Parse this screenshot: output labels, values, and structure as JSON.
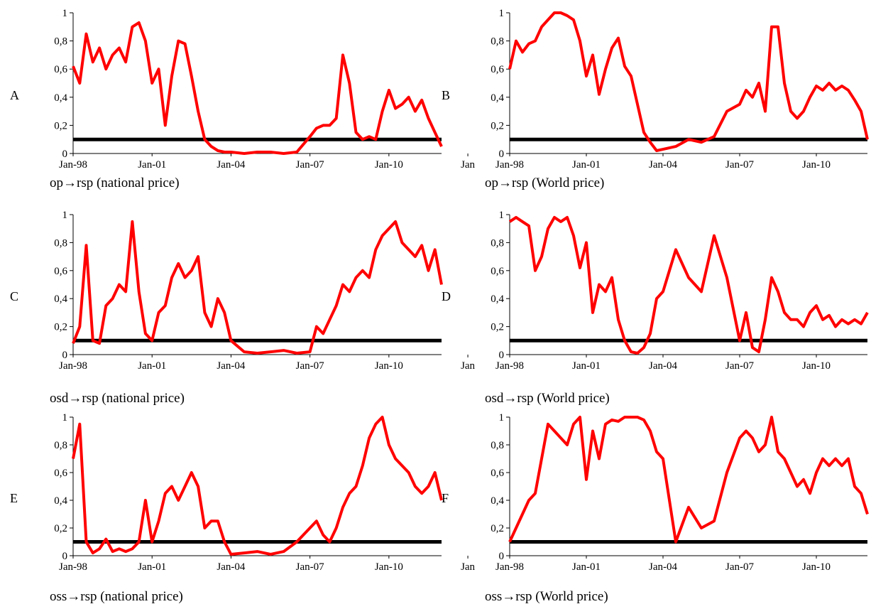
{
  "colors": {
    "series": "#ff0000",
    "threshold": "#000000"
  },
  "chart_data": [
    {
      "type": "line",
      "panel": "A",
      "caption": "op→rsp (national price)",
      "ylim": [
        0,
        1
      ],
      "yticks": [
        "0",
        "0,2",
        "0,4",
        "0,6",
        "0,8",
        "1"
      ],
      "xticks": [
        "Jan-98",
        "Jan-01",
        "Jan-04",
        "Jan-07",
        "Jan-10",
        "Jan"
      ],
      "threshold": 0.1,
      "x": [
        1998.0,
        1998.25,
        1998.5,
        1998.75,
        1999.0,
        1999.25,
        1999.5,
        1999.75,
        2000.0,
        2000.25,
        2000.5,
        2000.75,
        2001.0,
        2001.25,
        2001.5,
        2001.75,
        2002.0,
        2002.25,
        2002.5,
        2002.75,
        2003.0,
        2003.25,
        2003.5,
        2003.75,
        2004.0,
        2004.5,
        2005.0,
        2005.5,
        2006.0,
        2006.5,
        2007.0,
        2007.25,
        2007.5,
        2007.75,
        2008.0,
        2008.25,
        2008.5,
        2008.75,
        2009.0,
        2009.25,
        2009.5,
        2009.75,
        2010.0,
        2010.25,
        2010.5,
        2010.75,
        2011.0,
        2011.25,
        2011.5,
        2011.75,
        2012.0
      ],
      "values": [
        0.62,
        0.5,
        0.85,
        0.65,
        0.75,
        0.6,
        0.7,
        0.75,
        0.65,
        0.9,
        0.93,
        0.8,
        0.5,
        0.6,
        0.2,
        0.55,
        0.8,
        0.78,
        0.55,
        0.3,
        0.1,
        0.05,
        0.02,
        0.01,
        0.01,
        0.0,
        0.01,
        0.01,
        0.0,
        0.01,
        0.12,
        0.18,
        0.2,
        0.2,
        0.25,
        0.7,
        0.5,
        0.15,
        0.1,
        0.12,
        0.1,
        0.3,
        0.45,
        0.32,
        0.35,
        0.4,
        0.3,
        0.38,
        0.25,
        0.15,
        0.05
      ]
    },
    {
      "type": "line",
      "panel": "B",
      "caption": "op→rsp (World price)",
      "ylim": [
        0,
        1
      ],
      "yticks": [
        "0",
        "0,2",
        "0,4",
        "0,6",
        "0,8",
        "1"
      ],
      "xticks": [
        "Jan-98",
        "Jan-01",
        "Jan-04",
        "Jan-07",
        "Jan-10",
        "Jan"
      ],
      "threshold": 0.1,
      "x": [
        1998.0,
        1998.25,
        1998.5,
        1998.75,
        1999.0,
        1999.25,
        1999.5,
        1999.75,
        2000.0,
        2000.25,
        2000.5,
        2000.75,
        2001.0,
        2001.25,
        2001.5,
        2001.75,
        2002.0,
        2002.25,
        2002.5,
        2002.75,
        2003.0,
        2003.25,
        2003.5,
        2003.75,
        2004.0,
        2004.5,
        2005.0,
        2005.5,
        2006.0,
        2006.5,
        2007.0,
        2007.25,
        2007.5,
        2007.75,
        2008.0,
        2008.25,
        2008.5,
        2008.75,
        2009.0,
        2009.25,
        2009.5,
        2009.75,
        2010.0,
        2010.25,
        2010.5,
        2010.75,
        2011.0,
        2011.25,
        2011.5,
        2011.75,
        2012.0
      ],
      "values": [
        0.6,
        0.8,
        0.72,
        0.78,
        0.8,
        0.9,
        0.95,
        1.0,
        1.0,
        0.98,
        0.95,
        0.8,
        0.55,
        0.7,
        0.42,
        0.6,
        0.75,
        0.82,
        0.62,
        0.55,
        0.35,
        0.15,
        0.08,
        0.02,
        0.03,
        0.05,
        0.1,
        0.08,
        0.12,
        0.3,
        0.35,
        0.45,
        0.4,
        0.5,
        0.3,
        0.9,
        0.9,
        0.5,
        0.3,
        0.25,
        0.3,
        0.4,
        0.48,
        0.45,
        0.5,
        0.45,
        0.48,
        0.45,
        0.38,
        0.3,
        0.1
      ]
    },
    {
      "type": "line",
      "panel": "C",
      "caption": "osd→rsp (national price)",
      "ylim": [
        0,
        1
      ],
      "yticks": [
        "0",
        "0,2",
        "0,4",
        "0,6",
        "0,8",
        "1"
      ],
      "xticks": [
        "Jan-98",
        "Jan-01",
        "Jan-04",
        "Jan-07",
        "Jan-10",
        "Jan"
      ],
      "threshold": 0.1,
      "x": [
        1998.0,
        1998.25,
        1998.5,
        1998.75,
        1999.0,
        1999.25,
        1999.5,
        1999.75,
        2000.0,
        2000.25,
        2000.5,
        2000.75,
        2001.0,
        2001.25,
        2001.5,
        2001.75,
        2002.0,
        2002.25,
        2002.5,
        2002.75,
        2003.0,
        2003.25,
        2003.5,
        2003.75,
        2004.0,
        2004.5,
        2005.0,
        2005.5,
        2006.0,
        2006.5,
        2007.0,
        2007.25,
        2007.5,
        2007.75,
        2008.0,
        2008.25,
        2008.5,
        2008.75,
        2009.0,
        2009.25,
        2009.5,
        2009.75,
        2010.0,
        2010.25,
        2010.5,
        2010.75,
        2011.0,
        2011.25,
        2011.5,
        2011.75,
        2012.0
      ],
      "values": [
        0.08,
        0.2,
        0.78,
        0.1,
        0.08,
        0.35,
        0.4,
        0.5,
        0.45,
        0.95,
        0.45,
        0.15,
        0.1,
        0.3,
        0.35,
        0.55,
        0.65,
        0.55,
        0.6,
        0.7,
        0.3,
        0.2,
        0.4,
        0.3,
        0.1,
        0.02,
        0.01,
        0.02,
        0.03,
        0.01,
        0.02,
        0.2,
        0.15,
        0.25,
        0.35,
        0.5,
        0.45,
        0.55,
        0.6,
        0.55,
        0.75,
        0.85,
        0.9,
        0.95,
        0.8,
        0.75,
        0.7,
        0.78,
        0.6,
        0.75,
        0.5
      ]
    },
    {
      "type": "line",
      "panel": "D",
      "caption": "osd→rsp (World price)",
      "ylim": [
        0,
        1
      ],
      "yticks": [
        "0",
        "0,2",
        "0,4",
        "0,6",
        "0,8",
        "1"
      ],
      "xticks": [
        "Jan-98",
        "Jan-01",
        "Jan-04",
        "Jan-07",
        "Jan-10",
        "Jan"
      ],
      "threshold": 0.1,
      "x": [
        1998.0,
        1998.25,
        1998.5,
        1998.75,
        1999.0,
        1999.25,
        1999.5,
        1999.75,
        2000.0,
        2000.25,
        2000.5,
        2000.75,
        2001.0,
        2001.25,
        2001.5,
        2001.75,
        2002.0,
        2002.25,
        2002.5,
        2002.75,
        2003.0,
        2003.25,
        2003.5,
        2003.75,
        2004.0,
        2004.5,
        2005.0,
        2005.5,
        2006.0,
        2006.5,
        2007.0,
        2007.25,
        2007.5,
        2007.75,
        2008.0,
        2008.25,
        2008.5,
        2008.75,
        2009.0,
        2009.25,
        2009.5,
        2009.75,
        2010.0,
        2010.25,
        2010.5,
        2010.75,
        2011.0,
        2011.25,
        2011.5,
        2011.75,
        2012.0
      ],
      "values": [
        0.95,
        0.98,
        0.95,
        0.92,
        0.6,
        0.7,
        0.9,
        0.98,
        0.95,
        0.98,
        0.85,
        0.62,
        0.8,
        0.3,
        0.5,
        0.45,
        0.55,
        0.25,
        0.1,
        0.02,
        0.01,
        0.05,
        0.15,
        0.4,
        0.45,
        0.75,
        0.55,
        0.45,
        0.85,
        0.55,
        0.1,
        0.3,
        0.05,
        0.02,
        0.25,
        0.55,
        0.45,
        0.3,
        0.25,
        0.25,
        0.2,
        0.3,
        0.35,
        0.25,
        0.28,
        0.2,
        0.25,
        0.22,
        0.25,
        0.22,
        0.3
      ]
    },
    {
      "type": "line",
      "panel": "E",
      "caption": "oss→rsp (national price)",
      "ylim": [
        0,
        1
      ],
      "yticks": [
        "0",
        "0,2",
        "0,4",
        "0,6",
        "0,8",
        "1"
      ],
      "xticks": [
        "Jan-98",
        "Jan-01",
        "Jan-04",
        "Jan-07",
        "Jan-10",
        "Jan"
      ],
      "threshold": 0.1,
      "x": [
        1998.0,
        1998.25,
        1998.5,
        1998.75,
        1999.0,
        1999.25,
        1999.5,
        1999.75,
        2000.0,
        2000.25,
        2000.5,
        2000.75,
        2001.0,
        2001.25,
        2001.5,
        2001.75,
        2002.0,
        2002.25,
        2002.5,
        2002.75,
        2003.0,
        2003.25,
        2003.5,
        2003.75,
        2004.0,
        2004.5,
        2005.0,
        2005.5,
        2006.0,
        2006.5,
        2007.0,
        2007.25,
        2007.5,
        2007.75,
        2008.0,
        2008.25,
        2008.5,
        2008.75,
        2009.0,
        2009.25,
        2009.5,
        2009.75,
        2010.0,
        2010.25,
        2010.5,
        2010.75,
        2011.0,
        2011.25,
        2011.5,
        2011.75,
        2012.0
      ],
      "values": [
        0.7,
        0.95,
        0.1,
        0.02,
        0.05,
        0.12,
        0.03,
        0.05,
        0.03,
        0.05,
        0.1,
        0.4,
        0.1,
        0.25,
        0.45,
        0.5,
        0.4,
        0.5,
        0.6,
        0.5,
        0.2,
        0.25,
        0.25,
        0.1,
        0.01,
        0.02,
        0.03,
        0.01,
        0.03,
        0.1,
        0.2,
        0.25,
        0.15,
        0.1,
        0.2,
        0.35,
        0.45,
        0.5,
        0.65,
        0.85,
        0.95,
        1.0,
        0.8,
        0.7,
        0.65,
        0.6,
        0.5,
        0.45,
        0.5,
        0.6,
        0.4
      ]
    },
    {
      "type": "line",
      "panel": "F",
      "caption": "oss→rsp (World price)",
      "ylim": [
        0,
        1
      ],
      "yticks": [
        "0",
        "0,2",
        "0,4",
        "0,6",
        "0,8",
        "1"
      ],
      "xticks": [
        "Jan-98",
        "Jan-01",
        "Jan-04",
        "Jan-07",
        "Jan-10",
        "Jan"
      ],
      "threshold": 0.1,
      "x": [
        1998.0,
        1998.25,
        1998.5,
        1998.75,
        1999.0,
        1999.25,
        1999.5,
        1999.75,
        2000.0,
        2000.25,
        2000.5,
        2000.75,
        2001.0,
        2001.25,
        2001.5,
        2001.75,
        2002.0,
        2002.25,
        2002.5,
        2002.75,
        2003.0,
        2003.25,
        2003.5,
        2003.75,
        2004.0,
        2004.5,
        2005.0,
        2005.5,
        2006.0,
        2006.5,
        2007.0,
        2007.25,
        2007.5,
        2007.75,
        2008.0,
        2008.25,
        2008.5,
        2008.75,
        2009.0,
        2009.25,
        2009.5,
        2009.75,
        2010.0,
        2010.25,
        2010.5,
        2010.75,
        2011.0,
        2011.25,
        2011.5,
        2011.75,
        2012.0
      ],
      "values": [
        0.1,
        0.2,
        0.3,
        0.4,
        0.45,
        0.7,
        0.95,
        0.9,
        0.85,
        0.8,
        0.95,
        1.0,
        0.55,
        0.9,
        0.7,
        0.95,
        0.98,
        0.97,
        1.0,
        1.0,
        1.0,
        0.98,
        0.9,
        0.75,
        0.7,
        0.1,
        0.35,
        0.2,
        0.25,
        0.6,
        0.85,
        0.9,
        0.85,
        0.75,
        0.8,
        1.0,
        0.75,
        0.7,
        0.6,
        0.5,
        0.55,
        0.45,
        0.6,
        0.7,
        0.65,
        0.7,
        0.65,
        0.7,
        0.5,
        0.45,
        0.3
      ]
    }
  ]
}
